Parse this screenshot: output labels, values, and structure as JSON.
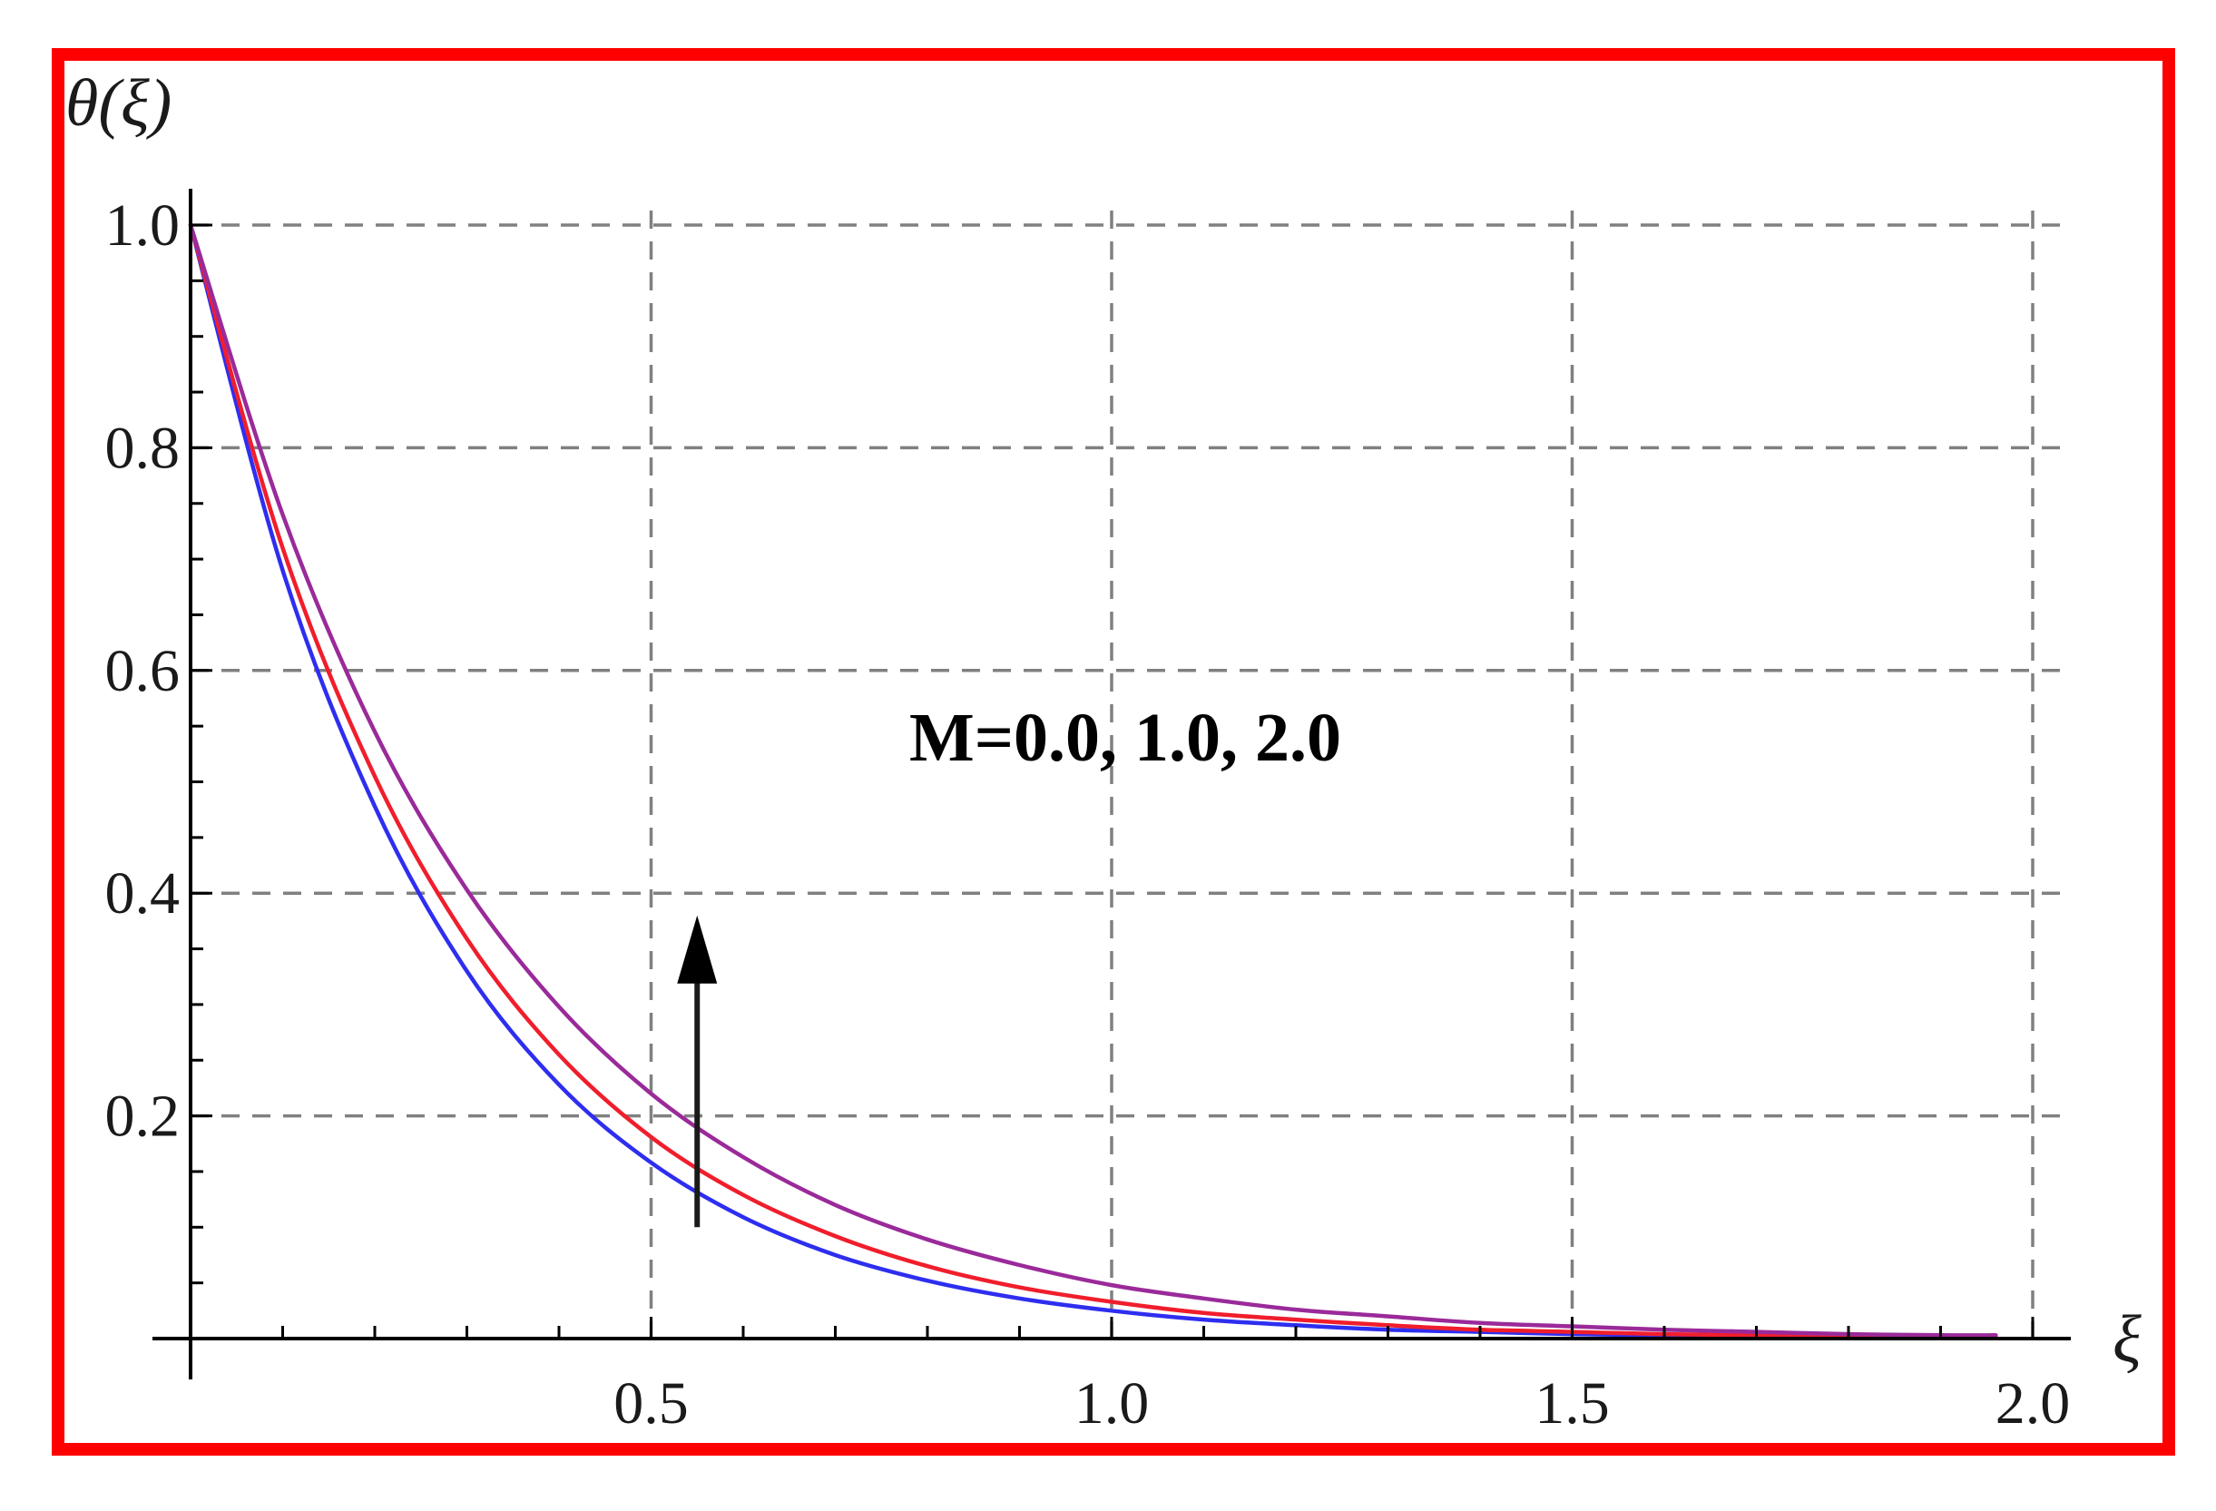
{
  "chart_data": {
    "type": "line",
    "xlabel": "ξ",
    "ylabel": "θ(ξ)",
    "xlim": [
      0,
      2.0
    ],
    "ylim": [
      0,
      1.0
    ],
    "x_ticks": [
      0.5,
      1.0,
      1.5,
      2.0
    ],
    "x_tick_labels": [
      "0.5",
      "1.0",
      "1.5",
      "2.0"
    ],
    "y_ticks": [
      0.2,
      0.4,
      0.6,
      0.8,
      1.0
    ],
    "y_tick_labels": [
      "0.2",
      "0.4",
      "0.6",
      "0.8",
      "1.0"
    ],
    "grid": true,
    "grid_style": "dashed",
    "annotation": {
      "text": "M=0.0, 1.0, 2.0",
      "arrow_x": 0.55,
      "arrow_from_y": 0.1,
      "arrow_to_y": 0.38,
      "arrow_direction": "up"
    },
    "series": [
      {
        "color": "#2e2ef0",
        "x": [
          0,
          0.1,
          0.2,
          0.3,
          0.4,
          0.5,
          0.6,
          0.7,
          0.8,
          0.9,
          1.0,
          1.1,
          1.2,
          1.3,
          1.4,
          1.5,
          1.6,
          1.7,
          1.8,
          1.9,
          1.96
        ],
        "values": [
          1.0,
          0.69,
          0.478,
          0.33,
          0.228,
          0.158,
          0.109,
          0.075,
          0.052,
          0.036,
          0.025,
          0.017,
          0.012,
          0.008,
          0.006,
          0.004,
          0.003,
          0.002,
          0.001,
          0.001,
          0.001
        ]
      },
      {
        "color": "#f01e2c",
        "x": [
          0,
          0.1,
          0.2,
          0.3,
          0.4,
          0.5,
          0.6,
          0.7,
          0.8,
          0.9,
          1.0,
          1.1,
          1.2,
          1.3,
          1.4,
          1.5,
          1.6,
          1.7,
          1.8,
          1.9,
          1.96
        ],
        "values": [
          1.0,
          0.71,
          0.505,
          0.359,
          0.255,
          0.181,
          0.129,
          0.092,
          0.065,
          0.046,
          0.033,
          0.023,
          0.017,
          0.012,
          0.008,
          0.006,
          0.004,
          0.003,
          0.002,
          0.002,
          0.001
        ]
      },
      {
        "color": "#9a2a9a",
        "x": [
          0,
          0.1,
          0.2,
          0.3,
          0.4,
          0.5,
          0.6,
          0.7,
          0.8,
          0.9,
          1.0,
          1.1,
          1.2,
          1.3,
          1.4,
          1.5,
          1.6,
          1.7,
          1.8,
          1.9,
          1.96
        ],
        "values": [
          1.0,
          0.74,
          0.545,
          0.403,
          0.298,
          0.22,
          0.163,
          0.12,
          0.089,
          0.066,
          0.048,
          0.036,
          0.026,
          0.02,
          0.014,
          0.011,
          0.008,
          0.006,
          0.004,
          0.003,
          0.003
        ]
      }
    ]
  },
  "colors": {
    "frame_border": "#ff0000",
    "grid": "#808080",
    "axis": "#000000",
    "arrow": "#1a1a1a"
  }
}
